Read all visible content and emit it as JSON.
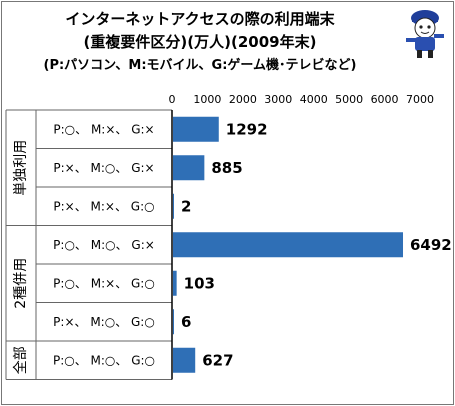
{
  "title_lines": [
    "インターネットアクセスの際の利用端末",
    "(重複要件区分)(万人)(2009年末)",
    "(P:パソコン、M:モバイル、G:ゲーム機･テレビなど)"
  ],
  "chart_data": {
    "type": "bar",
    "orientation": "horizontal",
    "xlim": [
      0,
      7000
    ],
    "xticks": [
      "0",
      "1000",
      "2000",
      "3000",
      "4000",
      "5000",
      "6000",
      "7000"
    ],
    "bar_color": "#2f6fb6",
    "groups": [
      {
        "label": "単独利用",
        "start": 0,
        "count": 3
      },
      {
        "label": "2種併用",
        "start": 3,
        "count": 3
      },
      {
        "label": "全部",
        "start": 6,
        "count": 1
      }
    ],
    "categories": [
      "P:○、 M:×、 G:×",
      "P:×、 M:○、 G:×",
      "P:×、 M:×、 G:○",
      "P:○、 M:○、 G:×",
      "P:○、 M:×、 G:○",
      "P:×、 M:○、 G:○",
      "P:○、 M:○、 G:○"
    ],
    "values": [
      1292,
      885,
      2,
      6492,
      103,
      6,
      627
    ],
    "value_labels": [
      "1292",
      "885",
      "2",
      "6492",
      "103",
      "6",
      "627"
    ]
  }
}
